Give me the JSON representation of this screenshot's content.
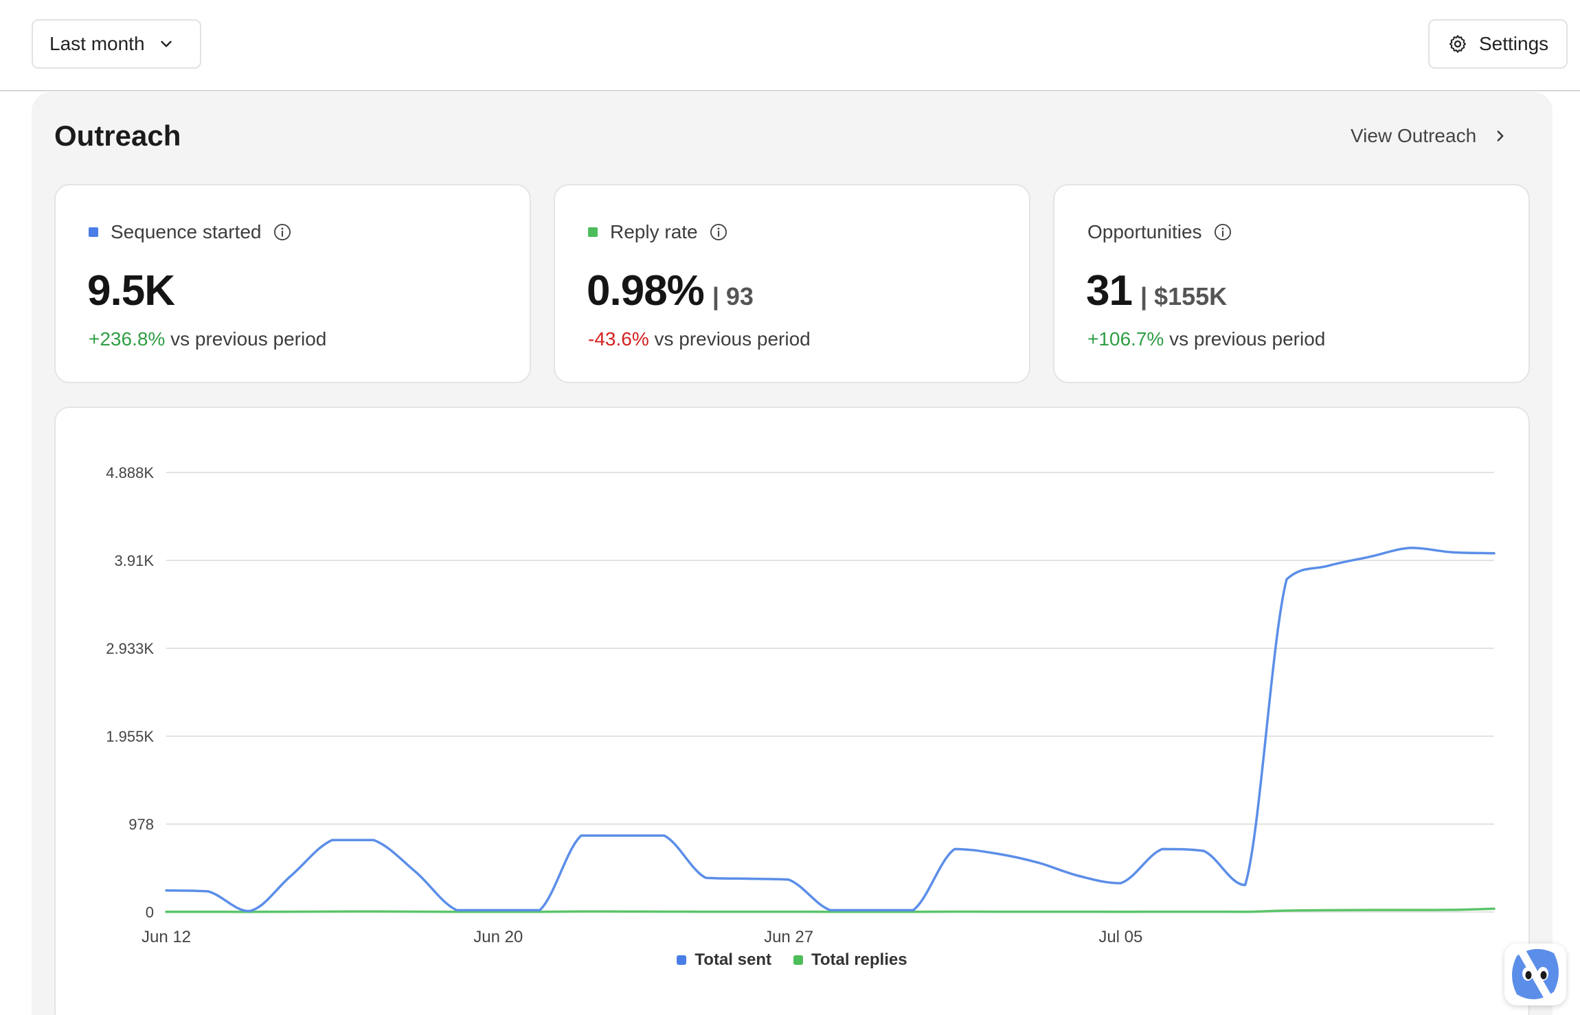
{
  "toolbar": {
    "period_label": "Last month",
    "settings_label": "Settings"
  },
  "section": {
    "title": "Outreach",
    "view_link": "View Outreach"
  },
  "cards": [
    {
      "label": "Sequence started",
      "value": "9.5K",
      "secondary": "",
      "delta": "+236.8%",
      "delta_suffix": "vs previous period",
      "dot_color": "#4a7ee6"
    },
    {
      "label": "Reply rate",
      "value": "0.98%",
      "secondary": "| 93",
      "delta": "-43.6%",
      "delta_suffix": "vs previous period",
      "dot_color": "#4cbd5a"
    },
    {
      "label": "Opportunities",
      "value": "31",
      "secondary": "| $155K",
      "delta": "+106.7%",
      "delta_suffix": "vs previous period",
      "dot_color": ""
    }
  ],
  "colors": {
    "total_sent": "#5b8ee8",
    "total_replies": "#5cc46a",
    "positive": "#2f9e44",
    "negative": "#d42020"
  },
  "chart_data": {
    "type": "line",
    "ylim": [
      0,
      4888
    ],
    "y_ticks": [
      0,
      978,
      1955,
      2933,
      3910,
      4888
    ],
    "y_tick_labels": [
      "0",
      "978",
      "1.955K",
      "2.933K",
      "3.91K",
      "4.888K"
    ],
    "x_ticks": [
      0,
      8,
      15,
      23
    ],
    "x_tick_labels": [
      "Jun 12",
      "Jun 20",
      "Jun 27",
      "Jul 05"
    ],
    "x_range": [
      0,
      32
    ],
    "grid": true,
    "legend_placement": "bottom-center",
    "series": [
      {
        "name": "Total sent",
        "color": "#5b8ee8",
        "x": [
          0,
          1,
          2,
          3,
          4,
          5,
          6,
          7,
          8,
          9,
          10,
          11,
          12,
          13,
          14,
          15,
          16,
          17,
          18,
          19,
          20,
          21,
          22,
          23,
          24,
          25,
          26,
          27,
          28,
          29,
          30,
          31,
          32
        ],
        "y": [
          240,
          230,
          10,
          400,
          800,
          800,
          450,
          20,
          20,
          20,
          850,
          850,
          850,
          380,
          370,
          360,
          20,
          20,
          20,
          700,
          650,
          550,
          400,
          320,
          700,
          680,
          300,
          3700,
          3850,
          3950,
          4050,
          4000,
          3990
        ]
      },
      {
        "name": "Total replies",
        "color": "#5cc46a",
        "x": [
          0,
          1,
          2,
          3,
          4,
          5,
          6,
          7,
          8,
          9,
          10,
          11,
          12,
          13,
          14,
          15,
          16,
          17,
          18,
          19,
          20,
          21,
          22,
          23,
          24,
          25,
          26,
          27,
          28,
          29,
          30,
          31,
          32
        ],
        "y": [
          2,
          2,
          1,
          3,
          5,
          6,
          4,
          2,
          2,
          2,
          6,
          5,
          4,
          3,
          3,
          3,
          2,
          2,
          2,
          4,
          3,
          3,
          3,
          2,
          3,
          3,
          2,
          15,
          20,
          22,
          22,
          24,
          36
        ]
      }
    ]
  }
}
